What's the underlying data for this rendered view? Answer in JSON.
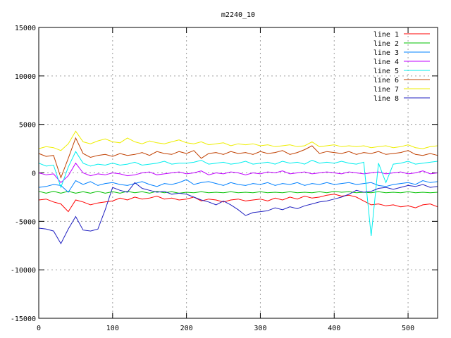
{
  "chart_data": {
    "type": "line",
    "title": "m2240_10",
    "xlabel": "",
    "ylabel": "",
    "xlim": [
      0,
      540
    ],
    "ylim": [
      -15000,
      15000
    ],
    "xticks": [
      0,
      100,
      200,
      300,
      400,
      500
    ],
    "yticks": [
      -15000,
      -10000,
      -5000,
      0,
      5000,
      10000,
      15000
    ],
    "grid": true,
    "legend_position": "top-right",
    "x": [
      0,
      10,
      20,
      30,
      40,
      50,
      60,
      70,
      80,
      90,
      100,
      110,
      120,
      130,
      140,
      150,
      160,
      170,
      180,
      190,
      200,
      210,
      220,
      230,
      240,
      250,
      260,
      270,
      280,
      290,
      300,
      310,
      320,
      330,
      340,
      350,
      360,
      370,
      380,
      390,
      400,
      410,
      420,
      430,
      440,
      450,
      460,
      470,
      480,
      490,
      500,
      510,
      520,
      530,
      540
    ],
    "series": [
      {
        "name": "line 1",
        "color": "#ff0000",
        "values": [
          -2800,
          -2700,
          -3000,
          -3200,
          -4000,
          -2800,
          -3000,
          -3300,
          -3100,
          -3000,
          -2900,
          -2600,
          -2800,
          -2500,
          -2700,
          -2600,
          -2400,
          -2700,
          -2600,
          -2800,
          -2700,
          -2500,
          -2900,
          -2700,
          -2800,
          -3000,
          -2800,
          -2700,
          -2900,
          -2800,
          -2700,
          -2900,
          -2600,
          -2800,
          -2500,
          -2700,
          -2400,
          -2600,
          -2500,
          -2300,
          -2200,
          -2400,
          -2300,
          -2500,
          -2900,
          -3300,
          -3200,
          -3400,
          -3300,
          -3500,
          -3400,
          -3600,
          -3300,
          -3200,
          -3500
        ]
      },
      {
        "name": "line 2",
        "color": "#00c000",
        "values": [
          -1900,
          -2100,
          -1900,
          -2100,
          -1900,
          -2100,
          -1950,
          -2100,
          -1900,
          -2100,
          -1950,
          -2100,
          -1900,
          -2050,
          -1950,
          -2100,
          -1900,
          -2050,
          -1950,
          -2100,
          -2000,
          -2050,
          -1950,
          -2050,
          -2000,
          -2050,
          -1950,
          -2050,
          -2000,
          -2050,
          -1950,
          -2050,
          -2000,
          -2050,
          -1950,
          -2050,
          -2000,
          -2050,
          -1950,
          -2050,
          -1900,
          -2000,
          -1950,
          -2050,
          -2000,
          -2050,
          -1950,
          -2050,
          -2000,
          -2050,
          -1950,
          -2050,
          -2000,
          -2050,
          -2000
        ]
      },
      {
        "name": "line 3",
        "color": "#0080ff",
        "values": [
          -1500,
          -1400,
          -1200,
          -1300,
          -2000,
          -800,
          -1200,
          -900,
          -1300,
          -1100,
          -1000,
          -1200,
          -1300,
          -1100,
          -900,
          -1200,
          -1400,
          -1100,
          -1200,
          -1000,
          -700,
          -1200,
          -1000,
          -900,
          -1100,
          -1300,
          -1000,
          -1200,
          -1300,
          -1100,
          -1200,
          -1000,
          -1300,
          -1100,
          -1200,
          -1000,
          -1300,
          -1100,
          -1200,
          -1000,
          -1200,
          -1100,
          -1000,
          -1200,
          -1100,
          -1000,
          -1300,
          -1400,
          -1200,
          -1100,
          -1000,
          -1200,
          -800,
          -1000,
          -900
        ]
      },
      {
        "name": "line 4",
        "color": "#c000ff",
        "values": [
          0,
          -200,
          -100,
          -1000,
          -300,
          1000,
          0,
          -300,
          -100,
          -200,
          0,
          -100,
          -300,
          -200,
          0,
          100,
          -200,
          -100,
          0,
          100,
          -100,
          0,
          200,
          -200,
          0,
          -100,
          100,
          0,
          -200,
          0,
          -100,
          100,
          0,
          200,
          -100,
          0,
          100,
          -100,
          0,
          100,
          0,
          -100,
          100,
          0,
          -100,
          0,
          100,
          -100,
          0,
          100,
          -100,
          0,
          200,
          -100,
          0
        ]
      },
      {
        "name": "line 5",
        "color": "#00eeee",
        "values": [
          1000,
          700,
          800,
          -1500,
          600,
          2200,
          1000,
          700,
          900,
          800,
          1000,
          800,
          900,
          1100,
          800,
          900,
          1000,
          1200,
          900,
          1000,
          1000,
          1100,
          1300,
          900,
          1000,
          1100,
          900,
          1000,
          1200,
          900,
          1000,
          1100,
          900,
          1200,
          1000,
          1100,
          900,
          1300,
          1000,
          1100,
          1000,
          1200,
          1000,
          900,
          1100,
          -6500,
          1000,
          -1000,
          900,
          1000,
          1200,
          900,
          1000,
          1100,
          1200
        ]
      },
      {
        "name": "line 6",
        "color": "#c04000",
        "values": [
          2000,
          1700,
          1800,
          -500,
          1500,
          3600,
          2000,
          1600,
          1800,
          1900,
          1700,
          2000,
          1800,
          1900,
          2100,
          1800,
          2200,
          2000,
          1900,
          2200,
          2000,
          2300,
          1500,
          2000,
          2100,
          1900,
          2200,
          2000,
          2100,
          1900,
          2200,
          2000,
          2100,
          2300,
          1900,
          2100,
          2400,
          2800,
          2000,
          2200,
          2100,
          2000,
          2200,
          1900,
          2100,
          2000,
          2200,
          1900,
          2000,
          2100,
          2300,
          1900,
          1800,
          2000,
          1800
        ]
      },
      {
        "name": "line 7",
        "color": "#eeee00",
        "values": [
          2500,
          2700,
          2600,
          2300,
          3000,
          4300,
          3200,
          3000,
          3300,
          3500,
          3200,
          3100,
          3600,
          3200,
          3000,
          3300,
          3100,
          3000,
          3200,
          3400,
          3100,
          3000,
          3200,
          2900,
          3000,
          3100,
          2800,
          3000,
          2900,
          3000,
          2800,
          2900,
          2700,
          2800,
          2900,
          2700,
          2800,
          3200,
          2700,
          2800,
          2900,
          2700,
          2800,
          2700,
          2800,
          2600,
          2700,
          2800,
          2600,
          2700,
          2900,
          2600,
          2500,
          2700,
          2800
        ]
      },
      {
        "name": "line 8",
        "color": "#2020c0",
        "values": [
          -5700,
          -5800,
          -6000,
          -7300,
          -5800,
          -4500,
          -5900,
          -6000,
          -5800,
          -3800,
          -1500,
          -1800,
          -2000,
          -1000,
          -1600,
          -1800,
          -2000,
          -1900,
          -2200,
          -2100,
          -2200,
          -2500,
          -2800,
          -3000,
          -3300,
          -2900,
          -3300,
          -3800,
          -4400,
          -4100,
          -4000,
          -3900,
          -3600,
          -3800,
          -3500,
          -3700,
          -3400,
          -3200,
          -3000,
          -2900,
          -2700,
          -2500,
          -2200,
          -1800,
          -2000,
          -1900,
          -1600,
          -1500,
          -1700,
          -1500,
          -1300,
          -1400,
          -1200,
          -1500,
          -1400
        ]
      }
    ]
  }
}
